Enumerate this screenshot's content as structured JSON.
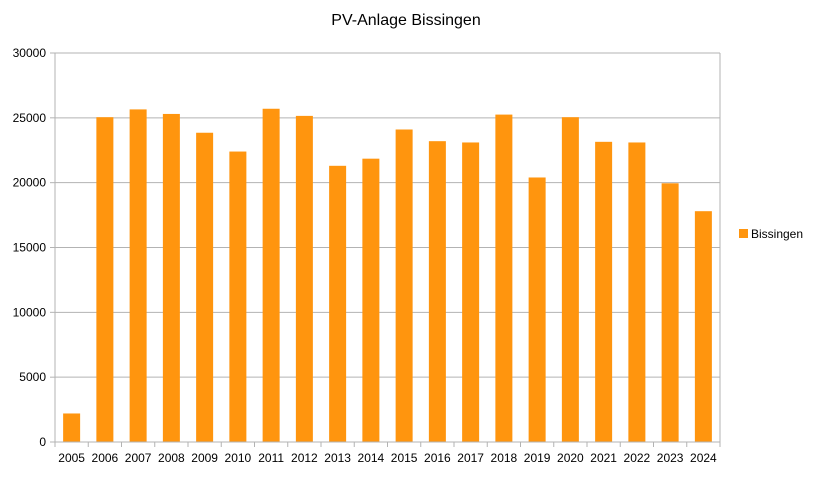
{
  "chart_data": {
    "type": "bar",
    "title": "PV-Anlage Bissingen",
    "xlabel": "",
    "ylabel": "",
    "categories": [
      "2005",
      "2006",
      "2007",
      "2008",
      "2009",
      "2010",
      "2011",
      "2012",
      "2013",
      "2014",
      "2015",
      "2016",
      "2017",
      "2018",
      "2019",
      "2020",
      "2021",
      "2022",
      "2023",
      "2024"
    ],
    "series": [
      {
        "name": "Bissingen",
        "color": "#FF950E",
        "values": [
          2200,
          25050,
          25650,
          25300,
          23850,
          22400,
          25700,
          25150,
          21300,
          21850,
          24100,
          23200,
          23100,
          25250,
          20400,
          25050,
          23150,
          23100,
          19950,
          17800
        ]
      }
    ],
    "ylim": [
      0,
      30000
    ],
    "yticks": [
      0,
      5000,
      10000,
      15000,
      20000,
      25000,
      30000
    ],
    "grid": true,
    "legend": "right"
  }
}
